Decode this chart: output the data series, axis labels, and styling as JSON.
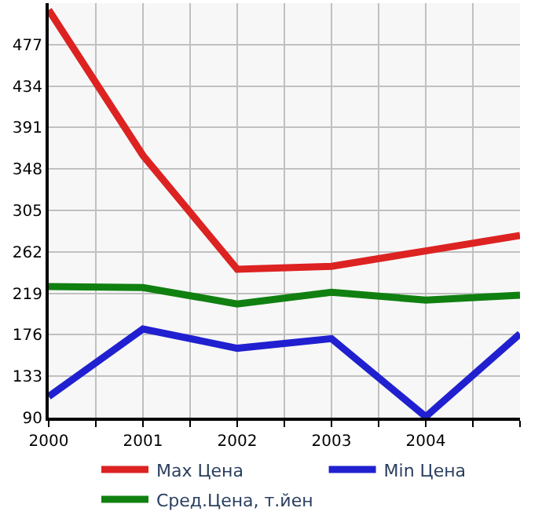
{
  "chart_data": {
    "type": "line",
    "x": [
      2000,
      2001,
      2002,
      2003,
      2004,
      2005
    ],
    "series": [
      {
        "name": "Max Цена",
        "color": "#dd2222",
        "values": [
          513,
          362,
          244,
          247,
          263,
          279
        ]
      },
      {
        "name": "Min Цена",
        "color": "#2020d0",
        "values": [
          112,
          182,
          162,
          172,
          91,
          177
        ]
      },
      {
        "name": "Сред.Цена, т.йен",
        "color": "#108010",
        "values": [
          226,
          225,
          208,
          220,
          212,
          217
        ]
      }
    ],
    "xlim": [
      2000,
      2005
    ],
    "xticks": [
      2000,
      {
        "value": 2000.5,
        "label": null
      },
      2001,
      {
        "value": 2001.5,
        "label": null
      },
      2002,
      {
        "value": 2002.5,
        "label": null
      },
      2003,
      {
        "value": 2003.5,
        "label": null
      },
      2004,
      {
        "value": 2004.5,
        "label": null
      },
      {
        "value": 2005,
        "label": null
      }
    ],
    "ylim": [
      90,
      520
    ],
    "yticks": [
      90,
      133,
      176,
      219,
      262,
      305,
      348,
      391,
      434,
      477
    ],
    "grid": true,
    "legend": "bottom",
    "marker": "none",
    "line_style": "solid"
  }
}
